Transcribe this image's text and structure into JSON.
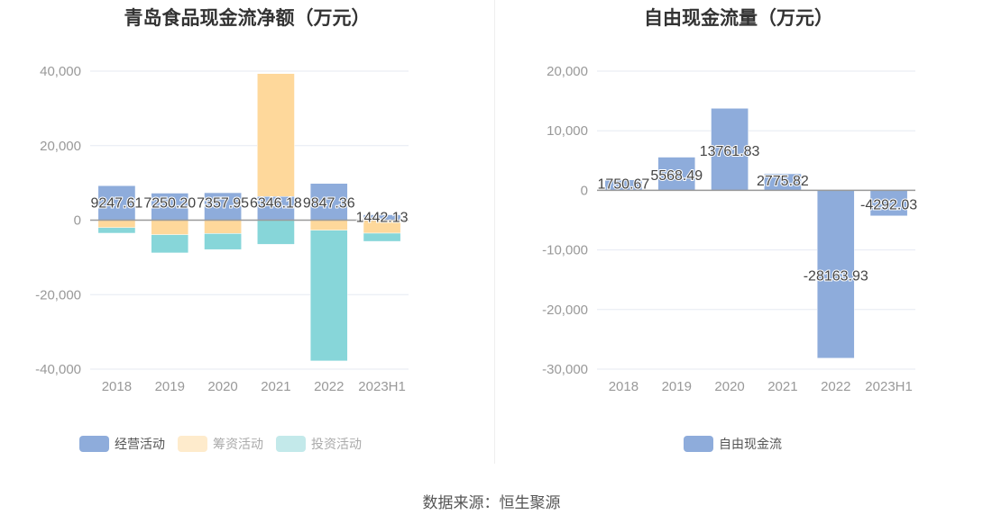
{
  "chart_data": [
    {
      "type": "bar",
      "stacked": true,
      "title": "青岛食品现金流净额（万元）",
      "categories": [
        "2018",
        "2019",
        "2020",
        "2021",
        "2022",
        "2023H1"
      ],
      "ylim": [
        -40000,
        40000
      ],
      "yticks": [
        40000,
        20000,
        0,
        -20000,
        -40000
      ],
      "ytick_labels": [
        "40,000",
        "20,000",
        "0",
        "-20,000",
        "-40,000"
      ],
      "legend_position": "bottom",
      "series": [
        {
          "name": "经营活动",
          "color": "#8eacdb",
          "values": [
            9247.61,
            7250.2,
            7357.95,
            6346.18,
            9847.36,
            1442.13
          ],
          "labels": [
            "9247.61",
            "7250.20",
            "7357.95",
            "6346.18",
            "9847.36",
            "1442.13"
          ]
        },
        {
          "name": "筹资活动",
          "color": "#fed89b",
          "legend_color": "#feebcc",
          "values": [
            -2000,
            -3900,
            -3600,
            33000,
            -2700,
            -3500
          ]
        },
        {
          "name": "投资活动",
          "color": "#87d6d9",
          "legend_color": "#c3e9ea",
          "values": [
            -1500,
            -4900,
            -4300,
            -6500,
            -35100,
            -2200
          ]
        }
      ]
    },
    {
      "type": "bar",
      "title": "自由现金流量（万元）",
      "categories": [
        "2018",
        "2019",
        "2020",
        "2021",
        "2022",
        "2023H1"
      ],
      "ylim": [
        -30000,
        20000
      ],
      "yticks": [
        20000,
        10000,
        0,
        -10000,
        -20000,
        -30000
      ],
      "ytick_labels": [
        "20,000",
        "10,000",
        "0",
        "-10,000",
        "-20,000",
        "-30,000"
      ],
      "legend_position": "bottom",
      "series": [
        {
          "name": "自由现金流",
          "color": "#8eacdb",
          "values": [
            1750.67,
            5568.49,
            13761.83,
            2775.82,
            -28163.93,
            -4292.03
          ],
          "labels": [
            "1750.67",
            "5568.49",
            "13761.83",
            "2775.82",
            "-28163.93",
            "-4292.03"
          ]
        }
      ]
    }
  ],
  "footer": "数据来源：恒生聚源"
}
